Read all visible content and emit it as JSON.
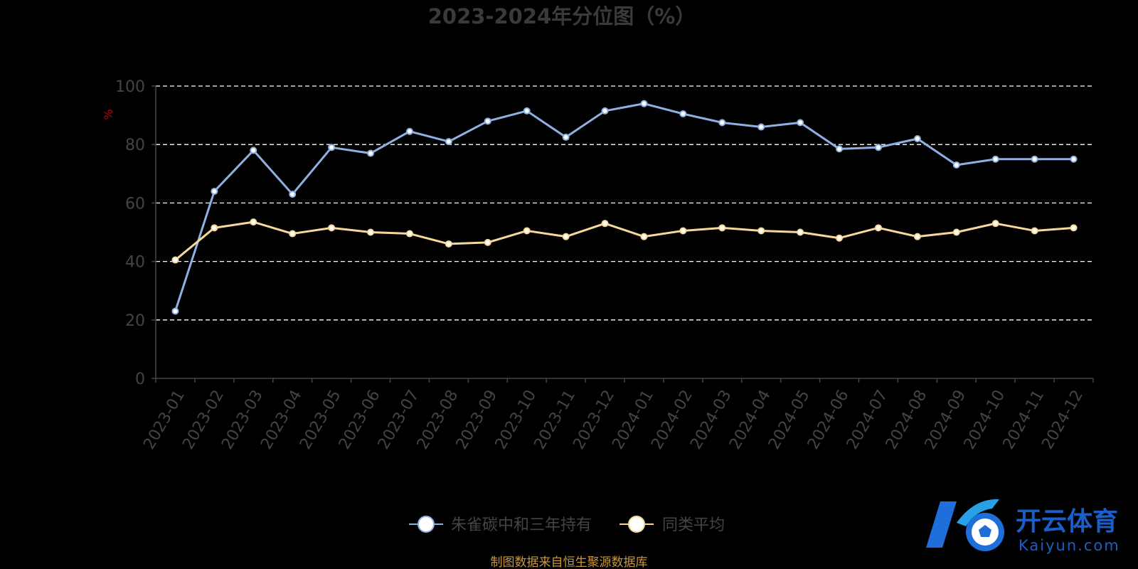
{
  "chart_data": {
    "type": "line",
    "title": "2023-2024年分位图（%）",
    "ylabel": "%",
    "ylim": [
      0,
      100
    ],
    "yticks": [
      0,
      20,
      40,
      60,
      80,
      100
    ],
    "grid": true,
    "legend_position": "bottom",
    "categories": [
      "2023-01",
      "2023-02",
      "2023-03",
      "2023-04",
      "2023-05",
      "2023-06",
      "2023-07",
      "2023-08",
      "2023-09",
      "2023-10",
      "2023-11",
      "2023-12",
      "2024-01",
      "2024-02",
      "2024-03",
      "2024-04",
      "2024-05",
      "2024-06",
      "2024-07",
      "2024-08",
      "2024-09",
      "2024-10",
      "2024-11",
      "2024-12"
    ],
    "series": [
      {
        "name": "朱雀碳中和三年持有",
        "color": "#8fb0e0",
        "values": [
          23,
          64,
          78,
          63,
          79,
          77,
          84.5,
          81,
          88,
          91.5,
          82.5,
          91.5,
          94,
          90.5,
          87.5,
          86,
          87.5,
          78.5,
          79,
          82,
          73,
          75,
          75,
          75
        ]
      },
      {
        "name": "同类平均",
        "color": "#f5d89a",
        "values": [
          40.5,
          51.5,
          53.5,
          49.5,
          51.5,
          50,
          49.5,
          46,
          46.5,
          50.5,
          48.5,
          53,
          48.5,
          50.5,
          51.5,
          50.5,
          50,
          48,
          51.5,
          48.5,
          50,
          53,
          50.5,
          51.5
        ]
      }
    ]
  },
  "footer": {
    "source": "制图数据来自恒生聚源数据库"
  },
  "watermark": {
    "brand": "开云体育",
    "domain": "Kaiyun.com",
    "logo_letters": "K"
  }
}
